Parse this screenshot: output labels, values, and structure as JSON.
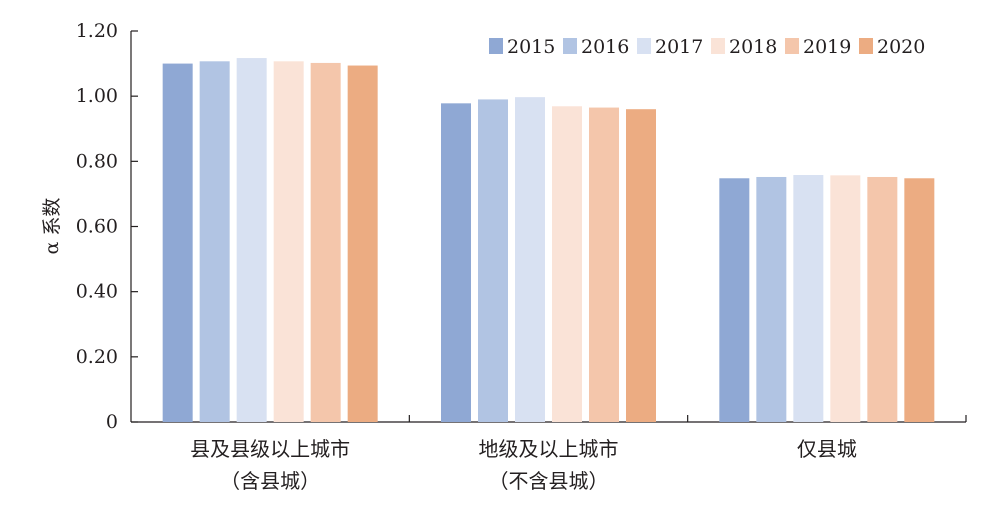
{
  "chart_data": {
    "type": "bar",
    "title": "",
    "xlabel": "",
    "ylabel": "α 系数",
    "ylim": [
      0,
      1.2
    ],
    "yticks": [
      "0",
      "0.20",
      "0.40",
      "0.60",
      "0.80",
      "1.00",
      "1.20"
    ],
    "categories": [
      [
        "县及县级以上城市",
        "（含县城）"
      ],
      [
        "地级及以上城市",
        "（不含县城）"
      ],
      [
        "仅县城"
      ]
    ],
    "series": [
      {
        "name": "2015",
        "color": "#8fa8d4",
        "values": [
          1.1,
          0.978,
          0.748
        ]
      },
      {
        "name": "2016",
        "color": "#b1c4e3",
        "values": [
          1.107,
          0.99,
          0.752
        ]
      },
      {
        "name": "2017",
        "color": "#d8e1f2",
        "values": [
          1.117,
          0.997,
          0.758
        ]
      },
      {
        "name": "2018",
        "color": "#fae3d7",
        "values": [
          1.107,
          0.969,
          0.757
        ]
      },
      {
        "name": "2019",
        "color": "#f4c6ab",
        "values": [
          1.102,
          0.965,
          0.752
        ]
      },
      {
        "name": "2020",
        "color": "#ecac82",
        "values": [
          1.094,
          0.96,
          0.748
        ]
      }
    ],
    "legend_position": "top-right",
    "grid": false
  }
}
